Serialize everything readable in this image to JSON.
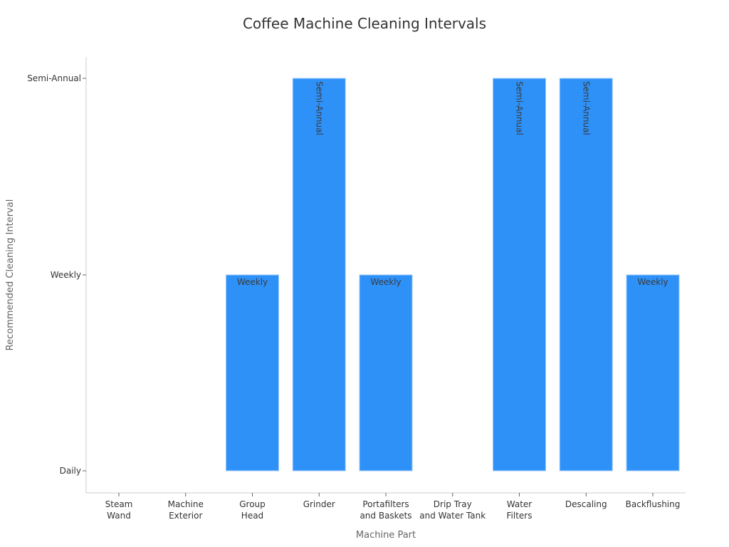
{
  "chart_data": {
    "type": "bar",
    "title": "Coffee Machine Cleaning Intervals",
    "xlabel": "Machine Part",
    "ylabel": "Recommended Cleaning Interval",
    "categories": [
      [
        "Steam",
        "Wand"
      ],
      [
        "Machine",
        "Exterior"
      ],
      [
        "Group",
        "Head"
      ],
      [
        "Grinder"
      ],
      [
        "Portafilters",
        "and Baskets"
      ],
      [
        "Drip Tray",
        "and Water Tank"
      ],
      [
        "Water",
        "Filters"
      ],
      [
        "Descaling"
      ],
      [
        "Backflushing"
      ]
    ],
    "y_ticks": [
      "Daily",
      "Weekly",
      "Semi-Annual"
    ],
    "values": [
      "Daily",
      "Daily",
      "Weekly",
      "Semi-Annual",
      "Weekly",
      "Daily",
      "Semi-Annual",
      "Semi-Annual",
      "Weekly"
    ],
    "ylim": [
      "Daily",
      "Semi-Annual"
    ],
    "bar_color": "#2e91f8",
    "grid": false,
    "legend": "none"
  }
}
